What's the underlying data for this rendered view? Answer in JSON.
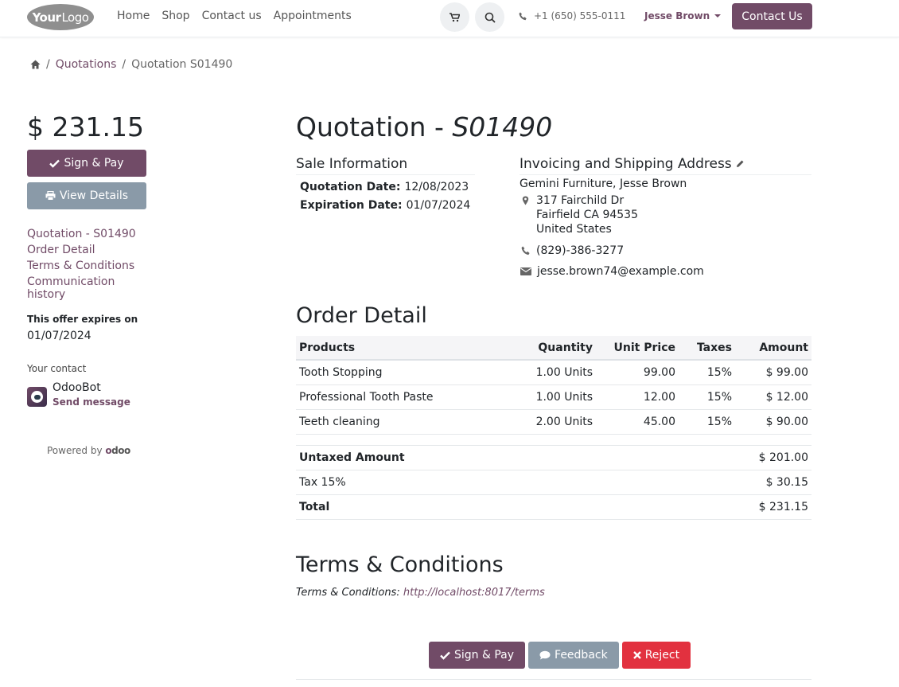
{
  "header": {
    "logo_text_bold": "Your",
    "logo_text_light": "Logo",
    "nav": [
      "Home",
      "Shop",
      "Contact us",
      "Appointments"
    ],
    "phone": "+1 (650) 555-0111",
    "user": "Jesse Brown",
    "contact_button": "Contact Us"
  },
  "breadcrumb": {
    "items": [
      "Quotations",
      "Quotation S01490"
    ]
  },
  "sidebar": {
    "total": "$ 231.15",
    "sign_pay": "Sign & Pay",
    "view_details": "View Details",
    "nav": [
      "Quotation - S01490",
      "Order Detail",
      "Terms & Conditions",
      "Communication history"
    ],
    "expires_label": "This offer expires on",
    "expires_date": "01/07/2024",
    "contact_label": "Your contact",
    "contact_name": "OdooBot",
    "send_message": "Send message",
    "powered_by": "Powered by",
    "powered_brand": "odoo"
  },
  "quotation": {
    "title_prefix": "Quotation - ",
    "number": "S01490",
    "sale_info_title": "Sale Information",
    "quotation_date_label": "Quotation Date:",
    "quotation_date": "12/08/2023",
    "expiration_date_label": "Expiration Date:",
    "expiration_date": "01/07/2024",
    "address_title": "Invoicing and Shipping Address",
    "customer": "Gemini Furniture, Jesse Brown",
    "street": "317 Fairchild Dr",
    "city": "Fairfield CA 94535",
    "country": "United States",
    "phone": "(829)-386-3277",
    "email": "jesse.brown74@example.com"
  },
  "order": {
    "title": "Order Detail",
    "columns": [
      "Products",
      "Quantity",
      "Unit Price",
      "Taxes",
      "Amount"
    ],
    "rows": [
      {
        "product": "Tooth Stopping",
        "qty": "1.00 Units",
        "price": "99.00",
        "tax": "15%",
        "amount": "$ 99.00"
      },
      {
        "product": "Professional Tooth Paste",
        "qty": "1.00 Units",
        "price": "12.00",
        "tax": "15%",
        "amount": "$ 12.00"
      },
      {
        "product": "Teeth cleaning",
        "qty": "2.00 Units",
        "price": "45.00",
        "tax": "15%",
        "amount": "$ 90.00"
      }
    ],
    "untaxed_label": "Untaxed Amount",
    "untaxed": "$ 201.00",
    "tax_label": "Tax 15%",
    "tax": "$ 30.15",
    "total_label": "Total",
    "total": "$ 231.15"
  },
  "terms": {
    "title": "Terms & Conditions",
    "label": "Terms & Conditions:",
    "url": "http://localhost:8017/terms"
  },
  "actions": {
    "sign_pay": "Sign & Pay",
    "feedback": "Feedback",
    "reject": "Reject"
  },
  "colors": {
    "brand": "#714b67",
    "secondary": "#8a9aa8",
    "danger": "#e2313f"
  },
  "icons": [
    "home-icon",
    "cart-icon",
    "search-icon",
    "phone-icon",
    "caret-down-icon",
    "check-icon",
    "print-icon",
    "pencil-icon",
    "map-marker-icon",
    "envelope-icon",
    "comment-icon",
    "times-icon"
  ]
}
